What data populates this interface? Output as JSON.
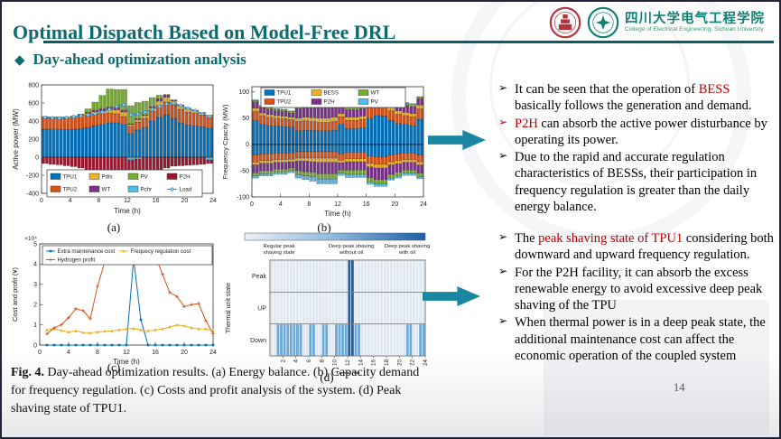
{
  "slide": {
    "title": "Optimal Dispatch Based on Model-Free DRL",
    "section_bullet": "◆",
    "section": "Day-ahead optimization analysis",
    "bullet_marker": "➢",
    "page_number": "14",
    "accent_color": "#0d6b70",
    "arrow_color": "#1a87a0"
  },
  "logos": {
    "org_cn": "四川大学电气工程学院",
    "org_en": "College of Electrical Engineering, Sichuan University"
  },
  "caption": {
    "prefix": "Fig. 4.",
    "text": " Day-ahead optimization results. (a) Energy balance. (b) Capacity demand for frequency regulation. (c) Costs and profit analysis of the system. (d) Peak shaving state of TPU1."
  },
  "bullets_top": [
    {
      "pre": "It can be seen that the operation of ",
      "red": "BESS",
      "post": " basically follows the generation and demand."
    },
    {
      "pre": " ",
      "red": "P2H",
      "post": " can absorb the active power disturbance by operating its power."
    },
    {
      "pre": " Due to the rapid and accurate regulation characteristics of BESSs, their participation in frequency regulation is greater than the daily energy balance.",
      "red": "",
      "post": ""
    }
  ],
  "bullets_bottom": [
    {
      "pre": "The ",
      "red": "peak shaving state of TPU1",
      "post": " considering both downward and upward frequency regulation."
    },
    {
      "pre": "For the P2H facility, it can absorb the excess renewable energy to avoid excessive deep peak shaving of the TPU",
      "red": "",
      "post": ""
    },
    {
      "pre": "When thermal power is in a deep peak state, the additional maintenance cost can affect the economic operation of the coupled system",
      "red": "",
      "post": ""
    }
  ],
  "chart_data": [
    {
      "id": "a",
      "type": "bar",
      "sublabel": "(a)",
      "xlabel": "Time (h)",
      "ylabel": "Active power (MW)",
      "xlim": [
        0,
        24
      ],
      "ylim": [
        -400,
        800
      ],
      "xticks": [
        0,
        4,
        8,
        12,
        16,
        20,
        24
      ],
      "yticks": [
        -400,
        -200,
        0,
        200,
        400,
        600,
        800
      ],
      "hours": [
        1,
        2,
        3,
        4,
        5,
        6,
        7,
        8,
        9,
        10,
        11,
        12,
        13,
        14,
        15,
        16,
        17,
        18,
        19,
        20,
        21,
        22,
        23,
        24
      ],
      "series": [
        {
          "name": "TPU1",
          "color": "#0072BD",
          "values": [
            310,
            312,
            310,
            308,
            310,
            315,
            330,
            350,
            360,
            380,
            380,
            360,
            260,
            300,
            330,
            400,
            440,
            470,
            430,
            380,
            355,
            345,
            335,
            320
          ]
        },
        {
          "name": "TPU2",
          "color": "#D95319",
          "values": [
            120,
            118,
            120,
            122,
            125,
            128,
            130,
            125,
            120,
            110,
            100,
            90,
            80,
            90,
            100,
            110,
            130,
            140,
            150,
            150,
            145,
            140,
            130,
            120
          ]
        },
        {
          "name": "Pdis",
          "color": "#EDB120",
          "values": [
            15,
            10,
            10,
            10,
            15,
            20,
            25,
            30,
            30,
            35,
            45,
            50,
            20,
            25,
            30,
            35,
            50,
            55,
            45,
            40,
            35,
            30,
            25,
            20
          ]
        },
        {
          "name": "WT",
          "color": "#7E2F8E",
          "values": [
            5,
            5,
            5,
            5,
            5,
            8,
            10,
            15,
            25,
            30,
            25,
            20,
            10,
            10,
            10,
            15,
            25,
            20,
            10,
            8,
            8,
            5,
            5,
            5
          ]
        },
        {
          "name": "PV",
          "color": "#77AC30",
          "values": [
            0,
            0,
            0,
            0,
            0,
            5,
            40,
            90,
            150,
            200,
            200,
            230,
            200,
            180,
            150,
            100,
            40,
            10,
            0,
            0,
            0,
            0,
            0,
            0
          ]
        },
        {
          "name": "Pchr",
          "color": "#4DBEEE",
          "values": [
            0,
            0,
            0,
            0,
            0,
            0,
            0,
            0,
            0,
            0,
            0,
            0,
            -30,
            -20,
            0,
            0,
            0,
            0,
            0,
            0,
            0,
            0,
            0,
            -30
          ]
        },
        {
          "name": "P2H",
          "color": "#A2142F",
          "values": [
            -70,
            -80,
            -85,
            -95,
            -105,
            -120,
            -140,
            -160,
            -180,
            -200,
            -215,
            -220,
            -170,
            -200,
            -190,
            -170,
            -150,
            -120,
            -100,
            -95,
            -90,
            -85,
            -80,
            -40
          ]
        }
      ],
      "line": {
        "name": "Load",
        "color": "#2f86c4",
        "marker_fill": "#8fd0f0",
        "values": [
          440,
          435,
          432,
          438,
          448,
          458,
          468,
          480,
          500,
          530,
          560,
          580,
          470,
          480,
          500,
          530,
          560,
          590,
          600,
          570,
          540,
          515,
          480,
          450
        ]
      },
      "legend": [
        {
          "label": "TPU1",
          "color": "#0072BD"
        },
        {
          "label": "Pdis",
          "color": "#EDB120"
        },
        {
          "label": "PV",
          "color": "#77AC30"
        },
        {
          "label": "P2H",
          "color": "#A2142F"
        },
        {
          "label": "TPU2",
          "color": "#D95319"
        },
        {
          "label": "WT",
          "color": "#7E2F8E"
        },
        {
          "label": "Pchr",
          "color": "#4DBEEE"
        },
        {
          "label": "Load",
          "color": "#2f86c4",
          "type": "line"
        }
      ]
    },
    {
      "id": "b",
      "type": "bar",
      "sublabel": "(b)",
      "xlabel": "Time (h)",
      "ylabel": "Frequency Cpacity (MW)",
      "xlim": [
        0,
        24
      ],
      "ylim": [
        -100,
        110
      ],
      "xticks": [
        0,
        4,
        8,
        12,
        16,
        20,
        24
      ],
      "yticks": [
        -100,
        -50,
        0,
        50,
        100
      ],
      "series_pos": [
        {
          "name": "TPU1",
          "color": "#0072BD",
          "values": [
            45,
            38,
            36,
            35,
            34,
            33,
            26,
            27,
            27,
            26,
            26,
            27,
            38,
            30,
            30,
            32,
            50,
            55,
            54,
            46,
            40,
            38,
            36,
            48
          ]
        },
        {
          "name": "TPU2",
          "color": "#D95319",
          "values": [
            18,
            17,
            16,
            15,
            15,
            14,
            18,
            18,
            17,
            16,
            16,
            17,
            15,
            16,
            16,
            16,
            20,
            20,
            20,
            18,
            18,
            17,
            17,
            20
          ]
        },
        {
          "name": "BESS",
          "color": "#EDB120",
          "values": [
            6,
            5,
            5,
            5,
            5,
            5,
            6,
            7,
            7,
            8,
            8,
            8,
            6,
            6,
            6,
            6,
            8,
            8,
            8,
            7,
            6,
            6,
            6,
            7
          ]
        },
        {
          "name": "P2H",
          "color": "#7E2F8E",
          "values": [
            12,
            10,
            10,
            9,
            9,
            8,
            18,
            20,
            20,
            20,
            20,
            20,
            12,
            14,
            14,
            14,
            18,
            16,
            16,
            14,
            14,
            13,
            13,
            12
          ]
        },
        {
          "name": "WT",
          "color": "#77AC30",
          "values": [
            3,
            3,
            3,
            3,
            3,
            3,
            6,
            6,
            7,
            8,
            8,
            8,
            3,
            5,
            5,
            5,
            6,
            5,
            5,
            4,
            4,
            4,
            4,
            3
          ]
        },
        {
          "name": "PV",
          "color": "#4DBEEE",
          "values": [
            1,
            1,
            1,
            1,
            1,
            1,
            3,
            4,
            5,
            6,
            6,
            6,
            1,
            3,
            3,
            3,
            3,
            3,
            3,
            2,
            2,
            2,
            2,
            1
          ]
        }
      ],
      "series_neg": [
        {
          "name": "TPU1",
          "color": "#0072BD",
          "values": [
            -20,
            -18,
            -18,
            -17,
            -17,
            -16,
            -14,
            -14,
            -14,
            -14,
            -14,
            -14,
            -18,
            -15,
            -15,
            -15,
            -22,
            -24,
            -24,
            -20,
            -18,
            -17,
            -17,
            -20
          ]
        },
        {
          "name": "TPU2",
          "color": "#D95319",
          "values": [
            -14,
            -13,
            -13,
            -12,
            -12,
            -12,
            -12,
            -12,
            -12,
            -12,
            -12,
            -12,
            -12,
            -12,
            -12,
            -12,
            -14,
            -14,
            -14,
            -13,
            -13,
            -12,
            -12,
            -13
          ]
        },
        {
          "name": "BESS",
          "color": "#EDB120",
          "values": [
            -5,
            -5,
            -5,
            -5,
            -5,
            -5,
            -6,
            -6,
            -7,
            -8,
            -8,
            -8,
            -5,
            -6,
            -6,
            -6,
            -7,
            -7,
            -7,
            -6,
            -6,
            -5,
            -5,
            -6
          ]
        },
        {
          "name": "P2H",
          "color": "#7E2F8E",
          "values": [
            -15,
            -14,
            -14,
            -13,
            -13,
            -12,
            -18,
            -20,
            -20,
            -22,
            -22,
            -22,
            -14,
            -16,
            -16,
            -16,
            -20,
            -22,
            -22,
            -18,
            -16,
            -15,
            -15,
            -16
          ]
        },
        {
          "name": "WT",
          "color": "#77AC30",
          "values": [
            -6,
            -6,
            -6,
            -6,
            -6,
            -5,
            -8,
            -8,
            -9,
            -10,
            -10,
            -10,
            -6,
            -8,
            -8,
            -8,
            -8,
            -8,
            -8,
            -7,
            -7,
            -6,
            -6,
            -6
          ]
        },
        {
          "name": "PV",
          "color": "#4DBEEE",
          "values": [
            -4,
            -4,
            -4,
            -4,
            -4,
            -4,
            -6,
            -7,
            -8,
            -9,
            -9,
            -9,
            -4,
            -6,
            -6,
            -6,
            -5,
            -5,
            -5,
            -4,
            -4,
            -4,
            -4,
            -4
          ]
        }
      ],
      "legend": [
        {
          "label": "TPU1",
          "color": "#0072BD"
        },
        {
          "label": "BESS",
          "color": "#EDB120"
        },
        {
          "label": "WT",
          "color": "#77AC30"
        },
        {
          "label": "TPU2",
          "color": "#D95319"
        },
        {
          "label": "P2H",
          "color": "#7E2F8E"
        },
        {
          "label": "PV",
          "color": "#4DBEEE"
        }
      ]
    },
    {
      "id": "c",
      "type": "line",
      "sublabel": "(c)",
      "xlabel": "Time (h)",
      "ylabel": "Cost and profit (¥)",
      "multiplier": "×10⁴",
      "xlim": [
        0,
        24
      ],
      "ylim": [
        0,
        5
      ],
      "xticks": [
        0,
        4,
        8,
        12,
        16,
        20,
        24
      ],
      "yticks": [
        0,
        1,
        2,
        3,
        4,
        5
      ],
      "series": [
        {
          "name": "Extra maintenance cost",
          "color": "#0072BD",
          "marker": "square",
          "values": [
            0,
            0,
            0,
            0,
            0,
            0,
            0,
            0,
            0,
            0,
            0,
            0,
            4.25,
            1.25,
            0,
            0,
            0,
            0,
            0,
            0,
            0,
            0,
            0,
            0
          ]
        },
        {
          "name": "Frequecy regulation cost",
          "color": "#EDB120",
          "marker": "triangle",
          "values": [
            0.75,
            0.8,
            0.72,
            0.65,
            0.7,
            0.62,
            0.6,
            0.65,
            0.68,
            0.7,
            0.75,
            0.8,
            0.82,
            0.75,
            0.7,
            0.75,
            0.8,
            0.9,
            1.0,
            0.95,
            0.85,
            0.8,
            0.8,
            0.72
          ]
        },
        {
          "name": "Hydrogen profit",
          "color": "#D95319",
          "marker": "plus",
          "values": [
            0.55,
            0.85,
            1.0,
            1.35,
            1.8,
            1.7,
            1.3,
            2.9,
            4.1,
            4.45,
            4.45,
            4.45,
            4.45,
            4.45,
            4.45,
            4.4,
            3.5,
            2.6,
            2.4,
            1.9,
            2.0,
            2.05,
            1.2,
            0.55
          ]
        }
      ]
    },
    {
      "id": "d",
      "type": "heatmap",
      "sublabel": "(d)",
      "xlabel": "Time (h)",
      "ylabel": "Thermal unit state",
      "rows": [
        "Peak",
        "UP",
        "Down"
      ],
      "xticks": [
        2,
        4,
        6,
        8,
        10,
        12,
        14,
        16,
        18,
        20,
        22,
        24
      ],
      "state_colors": [
        "#dfe8f1",
        "#6fa9d6",
        "#1e5fa8"
      ],
      "colorbar_labels": [
        [
          "Regular peak",
          "shaving state"
        ],
        [
          "Deep peak shaving",
          "without oil"
        ],
        [
          "Deep peak shaving",
          "with oil"
        ]
      ],
      "cells": {
        "Peak": [
          0,
          0,
          0,
          0,
          0,
          0,
          0,
          0,
          0,
          0,
          0,
          0,
          2,
          0,
          0,
          0,
          0,
          0,
          0,
          0,
          0,
          0,
          0,
          0
        ],
        "UP": [
          0,
          0,
          0,
          0,
          0,
          0,
          0,
          0,
          0,
          0,
          0,
          0,
          2,
          0,
          0,
          0,
          0,
          0,
          0,
          0,
          0,
          0,
          0,
          0
        ],
        "Down": [
          0,
          1,
          1,
          1,
          1,
          0,
          1,
          0,
          1,
          0,
          1,
          1,
          2,
          1,
          0,
          0,
          0,
          0,
          0,
          0,
          0,
          1,
          0,
          1
        ]
      }
    }
  ]
}
